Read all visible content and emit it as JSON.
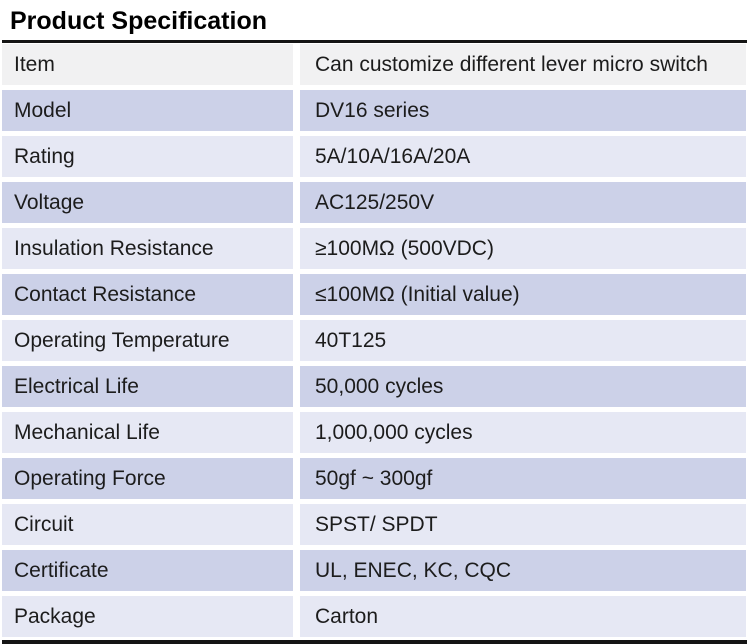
{
  "page": {
    "title": "Product Specification"
  },
  "table": {
    "rows": [
      {
        "label": "Item",
        "value": "Can customize different lever micro switch",
        "tone": "gray"
      },
      {
        "label": "Model",
        "value": "DV16 series",
        "tone": "dark"
      },
      {
        "label": "Rating",
        "value": "5A/10A/16A/20A",
        "tone": "light"
      },
      {
        "label": "Voltage",
        "value": "AC125/250V",
        "tone": "dark"
      },
      {
        "label": "Insulation Resistance",
        "value": "≥100MΩ (500VDC)",
        "tone": "light"
      },
      {
        "label": "Contact Resistance",
        "value": "≤100MΩ (Initial value)",
        "tone": "dark"
      },
      {
        "label": "Operating Temperature",
        "value": "40T125",
        "tone": "light"
      },
      {
        "label": "Electrical Life",
        "value": "50,000 cycles",
        "tone": "dark"
      },
      {
        "label": "Mechanical Life",
        "value": "1,000,000 cycles",
        "tone": "light"
      },
      {
        "label": "Operating Force",
        "value": "50gf ~ 300gf",
        "tone": "dark"
      },
      {
        "label": "Circuit",
        "value": "SPST/ SPDT",
        "tone": "light"
      },
      {
        "label": "Certificate",
        "value": "UL, ENEC, KC, CQC",
        "tone": "dark"
      },
      {
        "label": "Package",
        "value": "Carton",
        "tone": "light"
      }
    ]
  },
  "colors": {
    "row_gray": "#f1f1f2",
    "row_dark": "#ccd1e8",
    "row_light": "#e6e8f4",
    "rule": "#151515",
    "text": "#1c1c1c"
  }
}
